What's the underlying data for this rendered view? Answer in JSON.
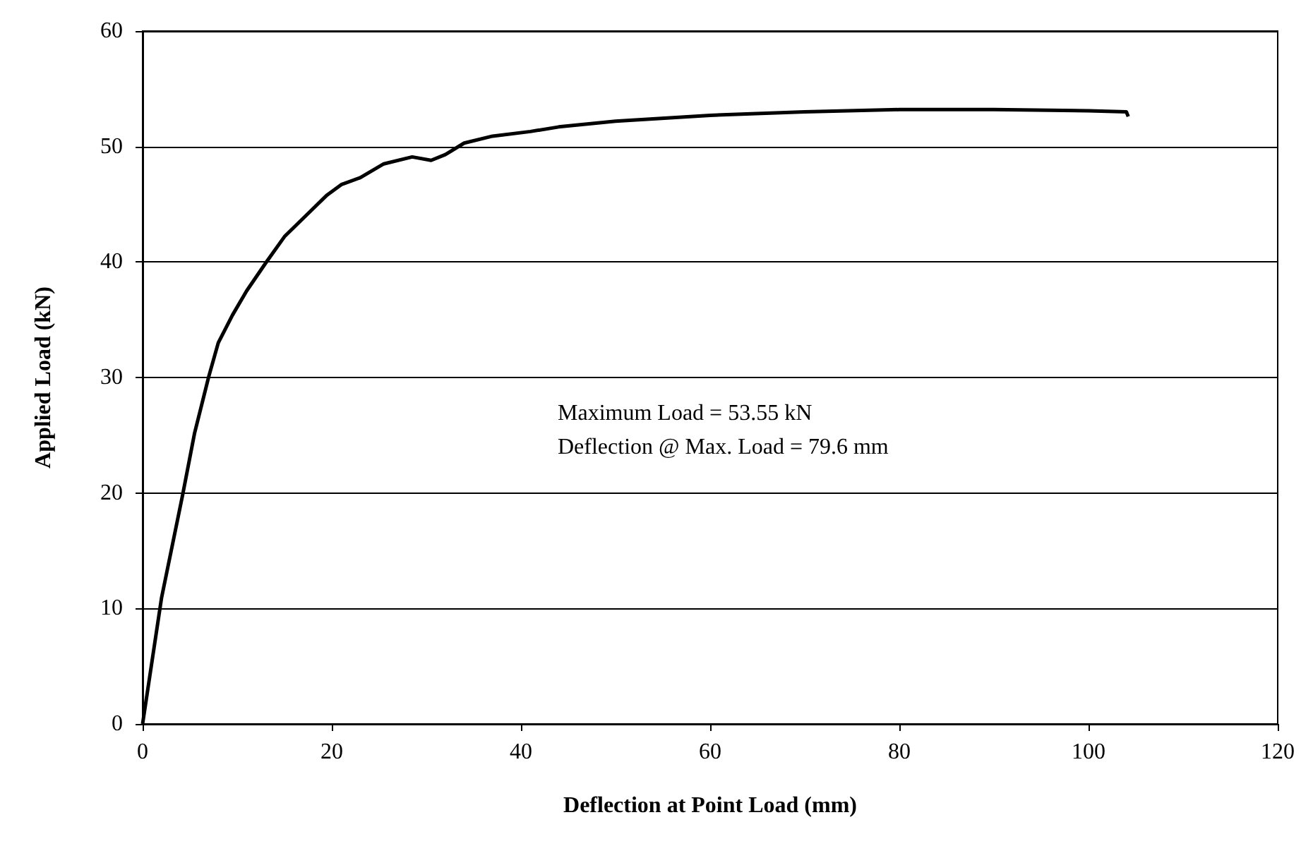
{
  "chart_data": {
    "type": "line",
    "xlabel": "Deflection at Point Load (mm)",
    "ylabel": "Applied Load (kN)",
    "xlim": [
      0,
      120
    ],
    "xticks": [
      0,
      20,
      40,
      60,
      80,
      100,
      120
    ],
    "ylim": [
      0,
      60
    ],
    "yticks": [
      0,
      10,
      20,
      30,
      40,
      50,
      60
    ],
    "grid": "y",
    "marker": "none",
    "line_style": "solid",
    "annotations": [
      "Maximum Load = 53.55 kN",
      "Deflection @ Max. Load = 79.6 mm"
    ],
    "series": [
      {
        "color": "#000000",
        "x": [
          0,
          2,
          4.25,
          5.5,
          7,
          8,
          9.5,
          11,
          13,
          15,
          18,
          19.5,
          21,
          23,
          25.5,
          28.5,
          30.5,
          32,
          34,
          37,
          41,
          44,
          50,
          60,
          70,
          80,
          90,
          100,
          104,
          104.2
        ],
        "values": [
          0,
          10.9,
          19.9,
          25.2,
          30.1,
          33,
          35.4,
          37.5,
          39.9,
          42.2,
          44.6,
          45.8,
          46.7,
          47.3,
          48.5,
          49.1,
          48.8,
          49.3,
          50.3,
          50.9,
          51.3,
          51.7,
          52.2,
          52.7,
          53,
          53.2,
          53.2,
          53.1,
          53,
          52.6
        ]
      }
    ]
  }
}
